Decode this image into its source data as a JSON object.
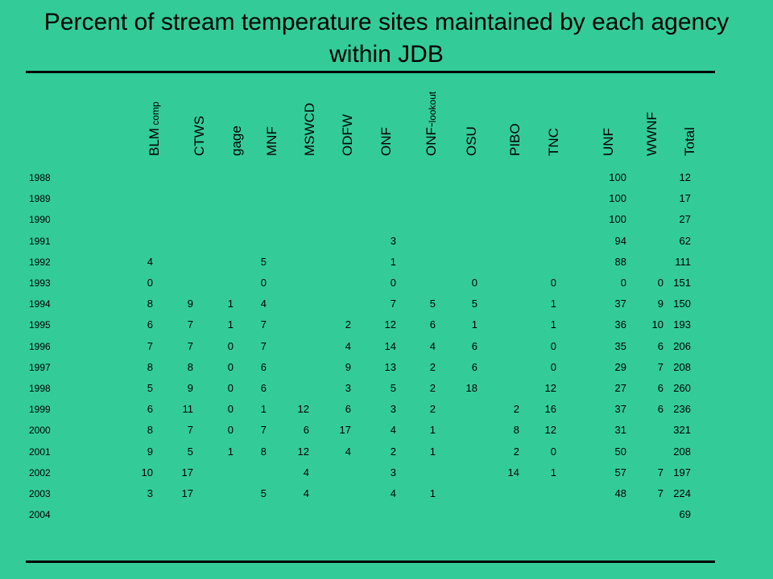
{
  "title": "Percent of stream temperature sites maintained by each agency within JDB",
  "columns": [
    {
      "main": "BLM",
      "sub": " comp"
    },
    {
      "main": "CTWS",
      "sub": ""
    },
    {
      "main": "gage",
      "sub": ""
    },
    {
      "main": "MNF",
      "sub": ""
    },
    {
      "main": "MSWCD",
      "sub": ""
    },
    {
      "main": "ODFW",
      "sub": ""
    },
    {
      "main": "ONF",
      "sub": ""
    },
    {
      "main": "ONF-",
      "sub": "lookout"
    },
    {
      "main": "OSU",
      "sub": ""
    },
    {
      "main": "PIBO",
      "sub": ""
    },
    {
      "main": "TNC",
      "sub": ""
    },
    {
      "main": "UNF",
      "sub": ""
    },
    {
      "main": "WWNF",
      "sub": ""
    },
    {
      "main": "Total",
      "sub": ""
    }
  ],
  "rows": [
    {
      "year": "1988",
      "values": [
        "",
        "",
        "",
        "",
        "",
        "",
        "",
        "",
        "",
        "",
        "",
        "100",
        "",
        "12"
      ]
    },
    {
      "year": "1989",
      "values": [
        "",
        "",
        "",
        "",
        "",
        "",
        "",
        "",
        "",
        "",
        "",
        "100",
        "",
        "17"
      ]
    },
    {
      "year": "1990",
      "values": [
        "",
        "",
        "",
        "",
        "",
        "",
        "",
        "",
        "",
        "",
        "",
        "100",
        "",
        "27"
      ]
    },
    {
      "year": "1991",
      "values": [
        "",
        "",
        "",
        "",
        "",
        "",
        "3",
        "",
        "",
        "",
        "",
        "94",
        "",
        "62"
      ]
    },
    {
      "year": "1992",
      "values": [
        "4",
        "",
        "",
        "5",
        "",
        "",
        "1",
        "",
        "",
        "",
        "",
        "88",
        "",
        "111"
      ]
    },
    {
      "year": "1993",
      "values": [
        "0",
        "",
        "",
        "0",
        "",
        "",
        "0",
        "",
        "0",
        "",
        "0",
        "0",
        "0",
        "151"
      ]
    },
    {
      "year": "1994",
      "values": [
        "8",
        "9",
        "1",
        "4",
        "",
        "",
        "7",
        "5",
        "5",
        "",
        "1",
        "37",
        "9",
        "150"
      ]
    },
    {
      "year": "1995",
      "values": [
        "6",
        "7",
        "1",
        "7",
        "",
        "2",
        "12",
        "6",
        "1",
        "",
        "1",
        "36",
        "10",
        "193"
      ]
    },
    {
      "year": "1996",
      "values": [
        "7",
        "7",
        "0",
        "7",
        "",
        "4",
        "14",
        "4",
        "6",
        "",
        "0",
        "35",
        "6",
        "206"
      ]
    },
    {
      "year": "1997",
      "values": [
        "8",
        "8",
        "0",
        "6",
        "",
        "9",
        "13",
        "2",
        "6",
        "",
        "0",
        "29",
        "7",
        "208"
      ]
    },
    {
      "year": "1998",
      "values": [
        "5",
        "9",
        "0",
        "6",
        "",
        "3",
        "5",
        "2",
        "18",
        "",
        "12",
        "27",
        "6",
        "260"
      ]
    },
    {
      "year": "1999",
      "values": [
        "6",
        "11",
        "0",
        "1",
        "12",
        "6",
        "3",
        "2",
        "",
        "2",
        "16",
        "37",
        "6",
        "236"
      ]
    },
    {
      "year": "2000",
      "values": [
        "8",
        "7",
        "0",
        "7",
        "6",
        "17",
        "4",
        "1",
        "",
        "8",
        "12",
        "31",
        "",
        "321"
      ]
    },
    {
      "year": "2001",
      "values": [
        "9",
        "5",
        "1",
        "8",
        "12",
        "4",
        "2",
        "1",
        "",
        "2",
        "0",
        "50",
        "",
        "208"
      ]
    },
    {
      "year": "2002",
      "values": [
        "10",
        "17",
        "",
        "",
        "4",
        "",
        "3",
        "",
        "",
        "14",
        "1",
        "57",
        "7",
        "197"
      ]
    },
    {
      "year": "2003",
      "values": [
        "3",
        "17",
        "",
        "5",
        "4",
        "",
        "4",
        "1",
        "",
        "",
        "",
        "48",
        "7",
        "224"
      ]
    },
    {
      "year": "2004",
      "values": [
        "",
        "",
        "",
        "",
        "",
        "",
        "",
        "",
        "",
        "",
        "",
        "",
        "",
        "69"
      ]
    }
  ]
}
